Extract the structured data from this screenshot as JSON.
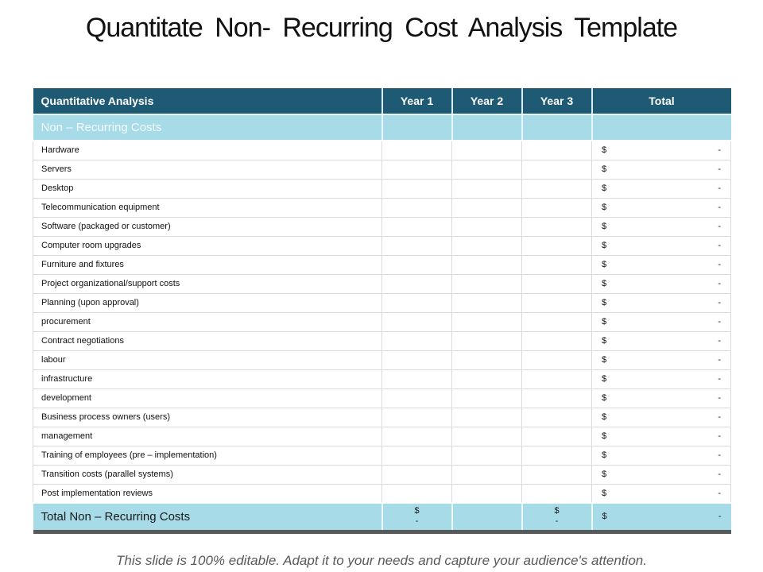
{
  "title": "Quantitate Non- Recurring Cost Analysis Template",
  "table": {
    "header": {
      "label": "Quantitative Analysis",
      "columns": [
        "Year 1",
        "Year 2",
        "Year 3",
        "Total"
      ]
    },
    "section_header": "Non – Recurring Costs",
    "rows": [
      {
        "label": "Hardware",
        "currency": "$",
        "value": "-"
      },
      {
        "label": "Servers",
        "currency": "$",
        "value": "-"
      },
      {
        "label": "Desktop",
        "currency": "$",
        "value": "-"
      },
      {
        "label": "Telecommunication equipment",
        "currency": "$",
        "value": "-"
      },
      {
        "label": "Software (packaged or customer)",
        "currency": "$",
        "value": "-"
      },
      {
        "label": "Computer room upgrades",
        "currency": "$",
        "value": "-"
      },
      {
        "label": "Furniture and fixtures",
        "currency": "$",
        "value": "-"
      },
      {
        "label": "Project organizational/support costs",
        "currency": "$",
        "value": "-"
      },
      {
        "label": "Planning (upon approval)",
        "currency": "$",
        "value": "-"
      },
      {
        "label": "procurement",
        "currency": "$",
        "value": "-"
      },
      {
        "label": "Contract negotiations",
        "currency": "$",
        "value": "-"
      },
      {
        "label": "labour",
        "currency": "$",
        "value": "-"
      },
      {
        "label": "infrastructure",
        "currency": "$",
        "value": "-"
      },
      {
        "label": "development",
        "currency": "$",
        "value": "-"
      },
      {
        "label": "Business process owners (users)",
        "currency": "$",
        "value": "-"
      },
      {
        "label": "management",
        "currency": "$",
        "value": "-"
      },
      {
        "label": "Training of employees (pre – implementation)",
        "currency": "$",
        "value": "-"
      },
      {
        "label": "Transition costs (parallel systems)",
        "currency": "$",
        "value": "-"
      },
      {
        "label": "Post implementation reviews",
        "currency": "$",
        "value": "-"
      }
    ],
    "footer": {
      "label": "Total Non – Recurring Costs",
      "year1": {
        "currency": "$",
        "value": "-"
      },
      "year2": {
        "currency": "",
        "value": ""
      },
      "year3": {
        "currency": "$",
        "value": "-"
      },
      "total": {
        "currency": "$",
        "value": "-"
      }
    }
  },
  "note": "This slide is 100% editable. Adapt it to your needs and capture your audience's attention.",
  "colors": {
    "header_bg": "#1e5a74",
    "accent_bg": "#a7dbe8",
    "grid_line": "#d9d9d9",
    "bottom_bar": "#58595b",
    "note_text": "#595959"
  }
}
